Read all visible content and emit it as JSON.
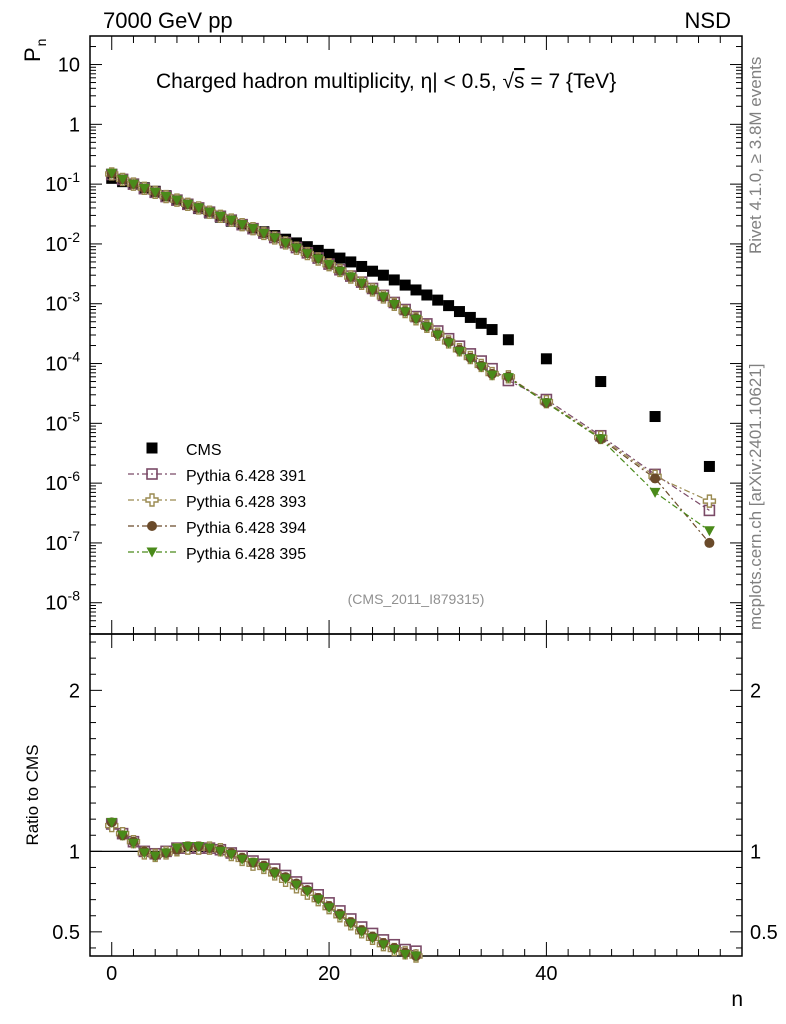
{
  "header": {
    "left": "7000 GeV pp",
    "right": "NSD"
  },
  "side_labels": {
    "rivet": "Rivet 4.1.0, ≥ 3.8M events",
    "mcplots": "mcplots.cern.ch [arXiv:2401.10621]"
  },
  "colors": {
    "cms": "#000000",
    "p391": "#7a4a67",
    "p393": "#9a8a50",
    "p394": "#6a4a2a",
    "p395": "#4a8a1a",
    "side_text": "#808080"
  },
  "chart_data": [
    {
      "type": "scatter",
      "panel": "main",
      "title": "Charged hadron multiplicity, η| < 0.5, √s = 7 {TeV}",
      "title_parts": {
        "pre": "Charged hadron multiplicity, ",
        "eta": "η",
        "mid": "| < 0.5, ",
        "sqrt": "√",
        "s": "s",
        "post": " = 7 {TeV}"
      },
      "ylabel": "P",
      "ylabel_sub": "n",
      "yscale": "log",
      "ylim": [
        3e-09,
        30
      ],
      "xlim": [
        -2,
        58
      ],
      "ytick_labels": [
        {
          "base": "10",
          "exp": "-8"
        },
        {
          "base": "10",
          "exp": "-7"
        },
        {
          "base": "10",
          "exp": "-6"
        },
        {
          "base": "10",
          "exp": "-5"
        },
        {
          "base": "10",
          "exp": "-4"
        },
        {
          "base": "10",
          "exp": "-3"
        },
        {
          "base": "10",
          "exp": "-2"
        },
        {
          "base": "10",
          "exp": "-1"
        },
        {
          "base": "1",
          "exp": ""
        },
        {
          "base": "10",
          "exp": ""
        }
      ],
      "ref_label": "(CMS_2011_I879315)",
      "legend_position": "lower-left",
      "series": [
        {
          "name": "CMS",
          "key": "cms",
          "marker": "square-filled",
          "x": [
            0,
            1,
            2,
            3,
            4,
            5,
            6,
            7,
            8,
            9,
            10,
            11,
            12,
            13,
            14,
            15,
            16,
            17,
            18,
            19,
            20,
            21,
            22,
            23,
            24,
            25,
            26,
            27,
            28,
            29,
            30,
            31,
            32,
            33,
            34,
            35,
            36.5,
            40,
            45,
            50,
            55
          ],
          "y": [
            0.125,
            0.11,
            0.1,
            0.087,
            0.076,
            0.064,
            0.054,
            0.046,
            0.039,
            0.033,
            0.028,
            0.024,
            0.021,
            0.018,
            0.016,
            0.0138,
            0.012,
            0.0104,
            0.009,
            0.0078,
            0.0067,
            0.0058,
            0.005,
            0.0042,
            0.0035,
            0.003,
            0.0025,
            0.00205,
            0.0017,
            0.0014,
            0.00115,
            0.00093,
            0.00074,
            0.00059,
            0.00047,
            0.00037,
            0.00025,
            0.00012,
            5e-05,
            1.3e-05,
            1.9e-06
          ]
        },
        {
          "name": "Pythia 6.428 391",
          "key": "p391",
          "marker": "square-open",
          "x": [
            0,
            1,
            2,
            3,
            4,
            5,
            6,
            7,
            8,
            9,
            10,
            11,
            12,
            13,
            14,
            15,
            16,
            17,
            18,
            19,
            20,
            21,
            22,
            23,
            24,
            25,
            26,
            27,
            28,
            29,
            30,
            31,
            32,
            33,
            34,
            35,
            36.5,
            40,
            45,
            50,
            55
          ],
          "y": [
            0.145,
            0.12,
            0.1,
            0.084,
            0.073,
            0.062,
            0.054,
            0.046,
            0.04,
            0.034,
            0.029,
            0.025,
            0.021,
            0.018,
            0.0152,
            0.0128,
            0.0105,
            0.0087,
            0.0071,
            0.0058,
            0.0046,
            0.0037,
            0.0029,
            0.0023,
            0.0018,
            0.00138,
            0.00105,
            0.0008,
            0.00061,
            0.00046,
            0.00035,
            0.00026,
            0.000195,
            0.000145,
            0.00011,
            8.2e-05,
            5.2e-05,
            2.5e-05,
            6.2e-06,
            1.4e-06,
            3.5e-07
          ]
        },
        {
          "name": "Pythia 6.428 393",
          "key": "p393",
          "marker": "cross-open",
          "x": [
            0,
            1,
            2,
            3,
            4,
            5,
            6,
            7,
            8,
            9,
            10,
            11,
            12,
            13,
            14,
            15,
            16,
            17,
            18,
            19,
            20,
            21,
            22,
            23,
            24,
            25,
            26,
            27,
            28,
            29,
            30,
            31,
            32,
            33,
            34,
            35,
            36.5,
            40,
            45,
            50,
            55
          ],
          "y": [
            0.148,
            0.12,
            0.1,
            0.085,
            0.073,
            0.062,
            0.054,
            0.046,
            0.04,
            0.034,
            0.029,
            0.025,
            0.021,
            0.018,
            0.015,
            0.0126,
            0.0104,
            0.0085,
            0.0069,
            0.0056,
            0.0045,
            0.0036,
            0.0028,
            0.0022,
            0.0017,
            0.0013,
            0.00098,
            0.00074,
            0.00056,
            0.00042,
            0.00031,
            0.00023,
            0.00017,
            0.000126,
            9.3e-05,
            6.8e-05,
            6e-05,
            2.3e-05,
            5.8e-06,
            1.3e-06,
            5e-07
          ]
        },
        {
          "name": "Pythia 6.428 394",
          "key": "p394",
          "marker": "circle-filled",
          "x": [
            0,
            1,
            2,
            3,
            4,
            5,
            6,
            7,
            8,
            9,
            10,
            11,
            12,
            13,
            14,
            15,
            16,
            17,
            18,
            19,
            20,
            21,
            22,
            23,
            24,
            25,
            26,
            27,
            28,
            29,
            30,
            31,
            32,
            33,
            34,
            35,
            36.5,
            40,
            45,
            50,
            55
          ],
          "y": [
            0.15,
            0.12,
            0.1,
            0.085,
            0.073,
            0.062,
            0.054,
            0.046,
            0.04,
            0.034,
            0.029,
            0.025,
            0.021,
            0.018,
            0.0151,
            0.0127,
            0.0104,
            0.0086,
            0.007,
            0.0057,
            0.0045,
            0.0036,
            0.0028,
            0.0022,
            0.0017,
            0.0013,
            0.00099,
            0.00075,
            0.00057,
            0.00042,
            0.00031,
            0.00023,
            0.00017,
            0.000125,
            9.2e-05,
            6.7e-05,
            6e-05,
            2.2e-05,
            5.5e-06,
            1.2e-06,
            1e-07
          ]
        },
        {
          "name": "Pythia 6.428 395",
          "key": "p395",
          "marker": "triangle-down-filled",
          "x": [
            0,
            1,
            2,
            3,
            4,
            5,
            6,
            7,
            8,
            9,
            10,
            11,
            12,
            13,
            14,
            15,
            16,
            17,
            18,
            19,
            20,
            21,
            22,
            23,
            24,
            25,
            26,
            27,
            28,
            29,
            30,
            31,
            32,
            33,
            34,
            35,
            36.5,
            40,
            45,
            50,
            55
          ],
          "y": [
            0.152,
            0.12,
            0.1,
            0.085,
            0.073,
            0.062,
            0.054,
            0.046,
            0.04,
            0.034,
            0.029,
            0.025,
            0.021,
            0.018,
            0.015,
            0.0126,
            0.0103,
            0.0085,
            0.0069,
            0.0056,
            0.0045,
            0.0035,
            0.0028,
            0.0022,
            0.0017,
            0.0013,
            0.00097,
            0.00073,
            0.00055,
            0.00041,
            0.0003,
            0.00022,
            0.00016,
            0.00012,
            8.8e-05,
            6.4e-05,
            5.8e-05,
            2.2e-05,
            5.5e-06,
            7e-07,
            1.6e-07
          ]
        }
      ]
    },
    {
      "type": "scatter",
      "panel": "ratio",
      "xlabel": "n",
      "ylabel": "Ratio to CMS",
      "ylim": [
        0.35,
        2.35
      ],
      "xlim": [
        -2,
        58
      ],
      "ytick_labels": [
        "0.5",
        "1",
        "2"
      ],
      "xtick_labels": [
        "0",
        "20",
        "40"
      ],
      "series": [
        {
          "name": "Pythia 6.428 391",
          "key": "p391",
          "marker": "square-open",
          "x": [
            0,
            1,
            2,
            3,
            4,
            5,
            6,
            7,
            8,
            9,
            10,
            11,
            12,
            13,
            14,
            15,
            16,
            17,
            18,
            19,
            20,
            21,
            22,
            23,
            24,
            25,
            26,
            27,
            28
          ],
          "y": [
            1.17,
            1.11,
            1.06,
            1.0,
            0.985,
            1.0,
            1.02,
            1.02,
            1.02,
            1.02,
            1.01,
            0.99,
            0.97,
            0.94,
            0.92,
            0.89,
            0.85,
            0.81,
            0.77,
            0.73,
            0.68,
            0.63,
            0.58,
            0.53,
            0.49,
            0.45,
            0.42,
            0.39,
            0.38
          ]
        },
        {
          "name": "Pythia 6.428 393",
          "key": "p393",
          "marker": "cross-open",
          "x": [
            0,
            1,
            2,
            3,
            4,
            5,
            6,
            7,
            8,
            9,
            10,
            11,
            12,
            13,
            14,
            15,
            16,
            17,
            18,
            19,
            20,
            21,
            22,
            23,
            24,
            25,
            26,
            27,
            28
          ],
          "y": [
            1.16,
            1.11,
            1.06,
            0.99,
            0.975,
            0.99,
            1.01,
            1.02,
            1.02,
            1.02,
            1.01,
            0.98,
            0.95,
            0.92,
            0.9,
            0.86,
            0.82,
            0.78,
            0.74,
            0.7,
            0.65,
            0.6,
            0.55,
            0.5,
            0.46,
            0.42,
            0.39,
            0.37,
            0.35
          ]
        },
        {
          "name": "Pythia 6.428 394",
          "key": "p394",
          "marker": "circle-filled",
          "x": [
            0,
            1,
            2,
            3,
            4,
            5,
            6,
            7,
            8,
            9,
            10,
            11,
            12,
            13,
            14,
            15,
            16,
            17,
            18,
            19,
            20,
            21,
            22,
            23,
            24,
            25,
            26,
            27,
            28
          ],
          "y": [
            1.18,
            1.1,
            1.06,
            1.0,
            0.975,
            0.99,
            1.01,
            1.03,
            1.03,
            1.02,
            1.01,
            0.99,
            0.96,
            0.93,
            0.91,
            0.87,
            0.84,
            0.8,
            0.76,
            0.71,
            0.66,
            0.61,
            0.56,
            0.51,
            0.47,
            0.43,
            0.4,
            0.37,
            0.35
          ]
        },
        {
          "name": "Pythia 6.428 395",
          "key": "p395",
          "marker": "triangle-down-filled",
          "x": [
            0,
            1,
            2,
            3,
            4,
            5,
            6,
            7,
            8,
            9,
            10,
            11,
            12,
            13,
            14,
            15,
            16,
            17,
            18,
            19,
            20,
            21,
            22,
            23,
            24,
            25,
            26,
            27,
            28
          ],
          "y": [
            1.18,
            1.1,
            1.05,
            0.99,
            0.97,
            0.99,
            1.02,
            1.03,
            1.03,
            1.02,
            1.0,
            0.98,
            0.95,
            0.93,
            0.9,
            0.86,
            0.83,
            0.79,
            0.75,
            0.7,
            0.65,
            0.6,
            0.55,
            0.5,
            0.46,
            0.42,
            0.39,
            0.36,
            0.35
          ]
        }
      ]
    }
  ]
}
